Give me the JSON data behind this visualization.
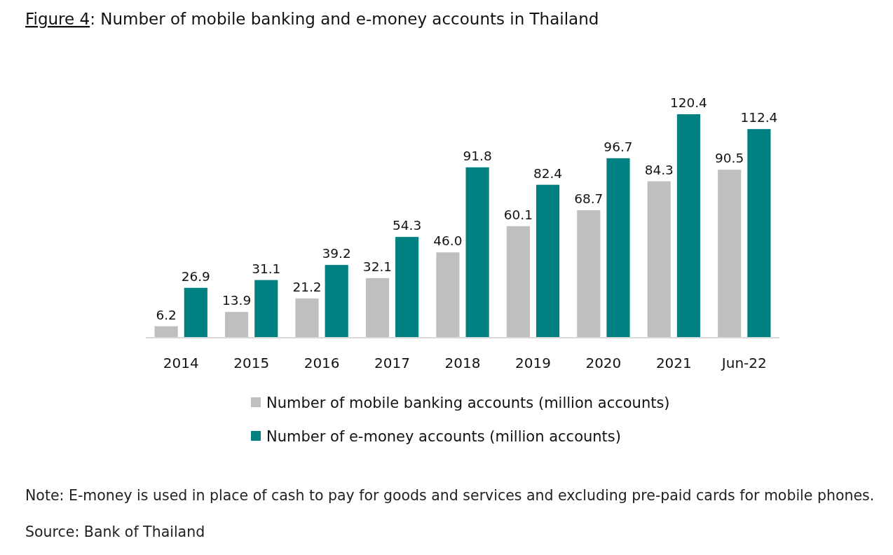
{
  "chart_data": {
    "type": "bar",
    "title": "Figure 4: Number of mobile banking and e-money accounts in Thailand",
    "categories": [
      "2014",
      "2015",
      "2016",
      "2017",
      "2018",
      "2019",
      "2020",
      "2021",
      "Jun-22"
    ],
    "series": [
      {
        "name": "Number of mobile banking accounts (million accounts)",
        "color": "#bfbfbf",
        "values": [
          6.2,
          13.9,
          21.2,
          32.1,
          46.0,
          60.1,
          68.7,
          84.3,
          90.5
        ],
        "value_labels": [
          "6.2",
          "13.9",
          "21.2",
          "32.1",
          "46.0",
          "60.1",
          "68.7",
          "84.3",
          "90.5"
        ]
      },
      {
        "name": "Number of e-money accounts (million accounts)",
        "color": "#008080",
        "values": [
          26.9,
          31.1,
          39.2,
          54.3,
          91.8,
          82.4,
          96.7,
          120.4,
          112.4
        ],
        "value_labels": [
          "26.9",
          "31.1",
          "39.2",
          "54.3",
          "91.8",
          "82.4",
          "96.7",
          "120.4",
          "112.4"
        ]
      }
    ],
    "legend": "bottom",
    "annotations": [
      "Note: E-money is used in place of cash to pay for goods and services and excluding pre-paid cards for mobile phones.",
      "Source: Bank of Thailand"
    ]
  }
}
